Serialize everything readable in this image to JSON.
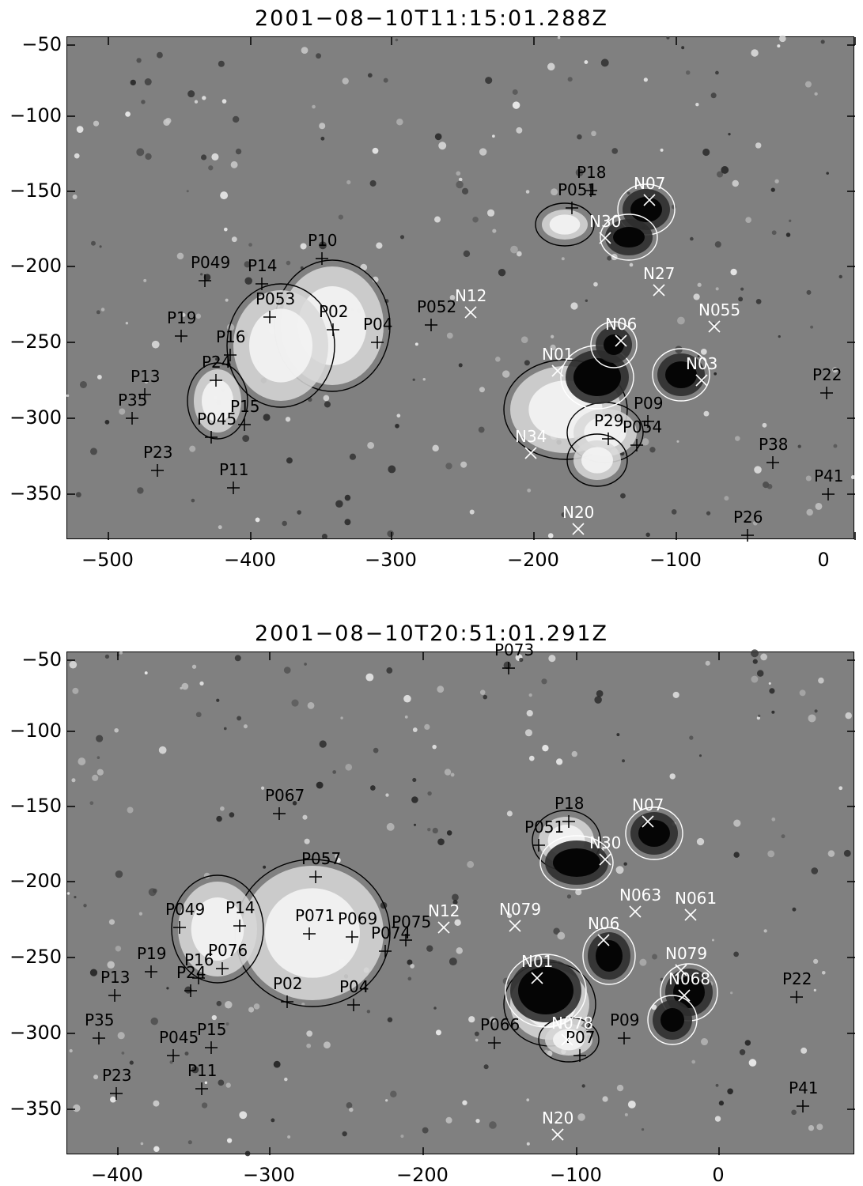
{
  "panels": [
    {
      "title": "2001−08−10T11:15:01.288Z",
      "x_range": [
        -520,
        0
      ],
      "y_range": [
        -380,
        -48
      ],
      "x_ticks": [
        "−500",
        "−400",
        "−300",
        "−200",
        "−100",
        "0"
      ],
      "y_ticks": [
        "−50",
        "−100",
        "−150",
        "−200",
        "−250",
        "−300",
        "−350"
      ],
      "positive_labels": [
        "P18",
        "P051",
        "P10",
        "P049",
        "P14",
        "P053",
        "P02",
        "P04",
        "P052",
        "P19",
        "P16",
        "P24",
        "P13",
        "P35",
        "P045",
        "P15",
        "P11",
        "P23",
        "P09",
        "P29",
        "P054",
        "P38",
        "P22",
        "P41",
        "P26"
      ],
      "negative_labels": [
        "N07",
        "N30",
        "N27",
        "N12",
        "N06",
        "N055",
        "N01",
        "N03",
        "N34",
        "N20"
      ]
    },
    {
      "title": "2001−08−10T20:51:01.291Z",
      "x_range": [
        -430,
        90
      ],
      "y_range": [
        -380,
        -48
      ],
      "x_ticks": [
        "−400",
        "−300",
        "−200",
        "−100",
        "0"
      ],
      "y_ticks": [
        "−50",
        "−100",
        "−150",
        "−200",
        "−250",
        "−300",
        "−350"
      ],
      "positive_labels": [
        "P073",
        "P067",
        "P18",
        "P051",
        "P057",
        "P049",
        "P14",
        "P071",
        "P069",
        "P074",
        "P075",
        "P19",
        "P16",
        "P076",
        "P02",
        "P04",
        "P13",
        "P24",
        "P35",
        "P045",
        "P15",
        "P23",
        "P11",
        "P066",
        "P07",
        "P09",
        "P22",
        "P41"
      ],
      "negative_labels": [
        "N07",
        "N30",
        "N12",
        "N079",
        "N063",
        "N06",
        "N061",
        "N01",
        "N079",
        "N068",
        "N078",
        "N20"
      ]
    }
  ]
}
